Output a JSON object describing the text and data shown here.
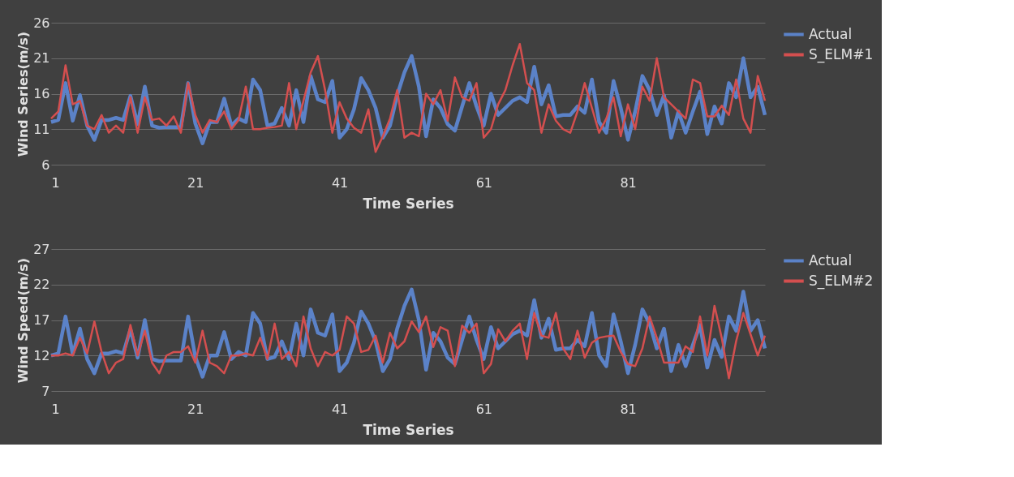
{
  "chart_data": [
    {
      "type": "line",
      "xlabel": "Time Series",
      "ylabel": "Wind Series(m/s)",
      "x": [
        1,
        2,
        3,
        4,
        5,
        6,
        7,
        8,
        9,
        10,
        11,
        12,
        13,
        14,
        15,
        16,
        17,
        18,
        19,
        20,
        21,
        22,
        23,
        24,
        25,
        26,
        27,
        28,
        29,
        30,
        31,
        32,
        33,
        34,
        35,
        36,
        37,
        38,
        39,
        40,
        41,
        42,
        43,
        44,
        45,
        46,
        47,
        48,
        49,
        50,
        51,
        52,
        53,
        54,
        55,
        56,
        57,
        58,
        59,
        60,
        61,
        62,
        63,
        64,
        65,
        66,
        67,
        68,
        69,
        70,
        71,
        72,
        73,
        74,
        75,
        76,
        77,
        78,
        79,
        80,
        81,
        82,
        83,
        84,
        85,
        86,
        87,
        88,
        89,
        90,
        91,
        92,
        93,
        94,
        95,
        96,
        97,
        98,
        99,
        100
      ],
      "xlim": [
        1,
        100
      ],
      "xticks": [
        1,
        21,
        41,
        61,
        81
      ],
      "ylim": [
        6,
        26
      ],
      "yticks": [
        6,
        11,
        16,
        21,
        26
      ],
      "grid": "y",
      "legend": "right",
      "line_style": "solid",
      "marker": "none",
      "series": [
        {
          "name": "Actual",
          "color": "#5b82c8",
          "values": [
            12,
            12.3,
            17.5,
            12.2,
            15.8,
            11.5,
            9.5,
            12.3,
            12.3,
            12.6,
            12.3,
            15.7,
            11.7,
            17,
            11.5,
            11.2,
            11.3,
            11.3,
            11.3,
            17.5,
            11.8,
            9,
            12,
            12,
            15.3,
            11.5,
            12.5,
            12,
            18,
            16.5,
            11.5,
            11.8,
            14,
            11.5,
            16.5,
            12,
            18.5,
            15.2,
            14.8,
            17.8,
            9.8,
            11,
            13.8,
            18.2,
            16.5,
            14,
            9.8,
            11.5,
            15.8,
            19,
            21.3,
            17,
            10,
            15.2,
            14,
            11.7,
            10.8,
            14.2,
            17.5,
            14.2,
            11.5,
            16,
            13,
            14,
            15,
            15.5,
            14.8,
            19.8,
            14.5,
            17.2,
            12.8,
            13,
            13,
            14.2,
            13.3,
            18,
            12,
            10.5,
            17.8,
            14,
            9.5,
            13.5,
            18.5,
            16.5,
            13,
            15.8,
            9.8,
            13.5,
            10.5,
            13.5,
            16.3,
            10.3,
            14.2,
            11.8,
            17.5,
            15.5,
            21,
            15.5,
            17,
            13
          ]
        },
        {
          "name": "S_ELM#1",
          "color": "#d44f4f",
          "values": [
            12.5,
            13.5,
            20,
            14.5,
            15,
            11.5,
            11,
            13,
            10.5,
            11.5,
            10.5,
            15.5,
            10.5,
            15.5,
            12.3,
            12.5,
            11.5,
            12.8,
            10.5,
            17.5,
            13,
            10.5,
            12.3,
            12,
            13.5,
            11,
            12.3,
            17,
            11,
            11,
            11.2,
            11.3,
            11.5,
            17.5,
            11,
            15,
            19,
            21.3,
            16.5,
            10.5,
            14.8,
            12.5,
            11.2,
            10.5,
            13.8,
            7.8,
            10,
            12.5,
            16.5,
            9.8,
            10.5,
            10,
            16,
            14.5,
            16.5,
            12.2,
            18.3,
            15.5,
            15,
            17.5,
            9.8,
            11,
            14.5,
            16.5,
            20,
            23,
            17.5,
            16.5,
            10.5,
            14.5,
            12.2,
            11,
            10.5,
            13.5,
            17.5,
            14,
            10.5,
            12.5,
            15.5,
            10,
            14.5,
            11,
            17,
            15,
            21,
            15.5,
            14.5,
            13.5,
            12.5,
            18,
            17.5,
            12.8,
            12.8,
            14.3,
            13,
            18,
            12.5,
            10.5,
            18.5,
            15
          ]
        }
      ]
    },
    {
      "type": "line",
      "xlabel": "Time Series",
      "ylabel": "Wind Speed(m/s)",
      "x": [
        1,
        2,
        3,
        4,
        5,
        6,
        7,
        8,
        9,
        10,
        11,
        12,
        13,
        14,
        15,
        16,
        17,
        18,
        19,
        20,
        21,
        22,
        23,
        24,
        25,
        26,
        27,
        28,
        29,
        30,
        31,
        32,
        33,
        34,
        35,
        36,
        37,
        38,
        39,
        40,
        41,
        42,
        43,
        44,
        45,
        46,
        47,
        48,
        49,
        50,
        51,
        52,
        53,
        54,
        55,
        56,
        57,
        58,
        59,
        60,
        61,
        62,
        63,
        64,
        65,
        66,
        67,
        68,
        69,
        70,
        71,
        72,
        73,
        74,
        75,
        76,
        77,
        78,
        79,
        80,
        81,
        82,
        83,
        84,
        85,
        86,
        87,
        88,
        89,
        90,
        91,
        92,
        93,
        94,
        95,
        96,
        97,
        98,
        99,
        100
      ],
      "xlim": [
        1,
        100
      ],
      "xticks": [
        1,
        21,
        41,
        61,
        81
      ],
      "ylim": [
        7,
        27
      ],
      "yticks": [
        7,
        12,
        17,
        22,
        27
      ],
      "grid": "y",
      "legend": "right",
      "line_style": "solid",
      "marker": "none",
      "series": [
        {
          "name": "Actual",
          "color": "#5b82c8",
          "values": [
            12,
            12.3,
            17.5,
            12.2,
            15.8,
            11.5,
            9.5,
            12.3,
            12.3,
            12.6,
            12.3,
            15.7,
            11.7,
            17,
            11.5,
            11.2,
            11.3,
            11.3,
            11.3,
            17.5,
            11.8,
            9,
            12,
            12,
            15.3,
            11.5,
            12.5,
            12,
            18,
            16.5,
            11.5,
            11.8,
            14,
            11.5,
            16.5,
            12,
            18.5,
            15.2,
            14.8,
            17.8,
            9.8,
            11,
            13.8,
            18.2,
            16.5,
            14,
            9.8,
            11.5,
            15.8,
            19,
            21.3,
            17,
            10,
            15.2,
            14,
            11.7,
            10.8,
            14.2,
            17.5,
            14.2,
            11.5,
            16,
            13,
            14,
            15,
            15.5,
            14.8,
            19.8,
            14.5,
            17.2,
            12.8,
            13,
            13,
            14.2,
            13.3,
            18,
            12,
            10.5,
            17.8,
            14,
            9.5,
            13.5,
            18.5,
            16.5,
            13,
            15.8,
            9.8,
            13.5,
            10.5,
            13.5,
            16.3,
            10.3,
            14.2,
            11.8,
            17.5,
            15.5,
            21,
            15.5,
            17,
            13
          ]
        },
        {
          "name": "S_ELM#2",
          "color": "#d44f4f",
          "values": [
            12,
            12,
            12.3,
            12,
            14.5,
            12.3,
            16.8,
            12.5,
            9.5,
            11,
            11.5,
            16.3,
            12,
            15.5,
            11,
            9.5,
            12,
            12.5,
            12.5,
            13.3,
            11,
            15.5,
            11,
            10.5,
            9.5,
            12,
            12,
            12.3,
            12,
            14.5,
            11.5,
            16.5,
            11.5,
            12.5,
            10.5,
            17.5,
            13,
            10.5,
            12.5,
            12,
            12.8,
            17.5,
            16.5,
            12.5,
            12.8,
            14.8,
            11,
            15.2,
            13,
            14,
            16.8,
            15.3,
            17.5,
            13.2,
            16,
            15.5,
            10.5,
            16.2,
            15.2,
            16.5,
            9.5,
            10.8,
            15.7,
            14,
            15.5,
            16.5,
            11.5,
            18,
            14.8,
            14.5,
            18,
            13,
            11.5,
            15.5,
            11.7,
            13.8,
            14.5,
            14.7,
            14.8,
            12.5,
            10.8,
            10.5,
            13,
            17.5,
            14.5,
            11,
            11,
            11,
            13.3,
            12.5,
            17.5,
            12,
            19,
            14.5,
            8.8,
            14,
            18,
            15,
            12,
            14.8
          ]
        }
      ]
    }
  ]
}
